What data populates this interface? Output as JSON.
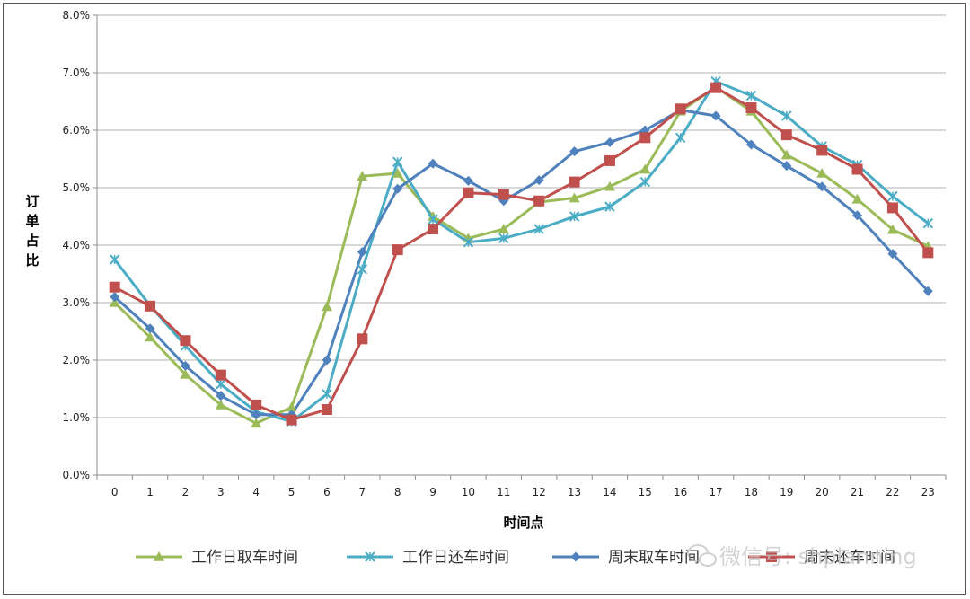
{
  "chart_data": {
    "type": "line",
    "title": "",
    "xlabel": "时间点",
    "ylabel": "订单占比",
    "categories": [
      "0",
      "1",
      "2",
      "3",
      "4",
      "5",
      "6",
      "7",
      "8",
      "9",
      "10",
      "11",
      "12",
      "13",
      "14",
      "15",
      "16",
      "17",
      "18",
      "19",
      "20",
      "21",
      "22",
      "23"
    ],
    "y_ticks": [
      "0.0%",
      "1.0%",
      "2.0%",
      "3.0%",
      "4.0%",
      "5.0%",
      "6.0%",
      "7.0%",
      "8.0%"
    ],
    "ylim": [
      0,
      8
    ],
    "y_unit": "%",
    "grid": "horizontal",
    "legend_position": "bottom",
    "series": [
      {
        "name": "工作日取车时间",
        "color": "#9bbb59",
        "marker": "triangle",
        "values": [
          3.0,
          2.4,
          1.75,
          1.22,
          0.9,
          1.18,
          2.93,
          5.2,
          5.25,
          4.5,
          4.12,
          4.28,
          4.75,
          4.82,
          5.02,
          5.32,
          6.33,
          6.75,
          6.33,
          5.57,
          5.25,
          4.8,
          4.27,
          3.98
        ]
      },
      {
        "name": "工作日还车时间",
        "color": "#4bacc6",
        "marker": "x",
        "values": [
          3.75,
          2.95,
          2.25,
          1.58,
          1.1,
          0.93,
          1.41,
          3.58,
          5.45,
          4.45,
          4.05,
          4.12,
          4.28,
          4.5,
          4.67,
          5.1,
          5.87,
          6.85,
          6.6,
          6.25,
          5.72,
          5.4,
          4.85,
          4.38
        ]
      },
      {
        "name": "周末取车时间",
        "color": "#4f81bd",
        "marker": "diamond",
        "values": [
          3.1,
          2.55,
          1.9,
          1.38,
          1.05,
          1.05,
          2.0,
          3.88,
          4.98,
          5.42,
          5.12,
          4.77,
          5.13,
          5.63,
          5.79,
          6.0,
          6.35,
          6.25,
          5.75,
          5.38,
          5.02,
          4.52,
          3.85,
          3.2
        ]
      },
      {
        "name": "周末还车时间",
        "color": "#c0504d",
        "marker": "square",
        "values": [
          3.27,
          2.94,
          2.34,
          1.74,
          1.22,
          0.96,
          1.14,
          2.37,
          3.92,
          4.28,
          4.91,
          4.88,
          4.77,
          5.1,
          5.47,
          5.87,
          6.37,
          6.74,
          6.39,
          5.92,
          5.65,
          5.32,
          4.65,
          3.87
        ]
      }
    ]
  },
  "watermark": "微信号: shplanning"
}
